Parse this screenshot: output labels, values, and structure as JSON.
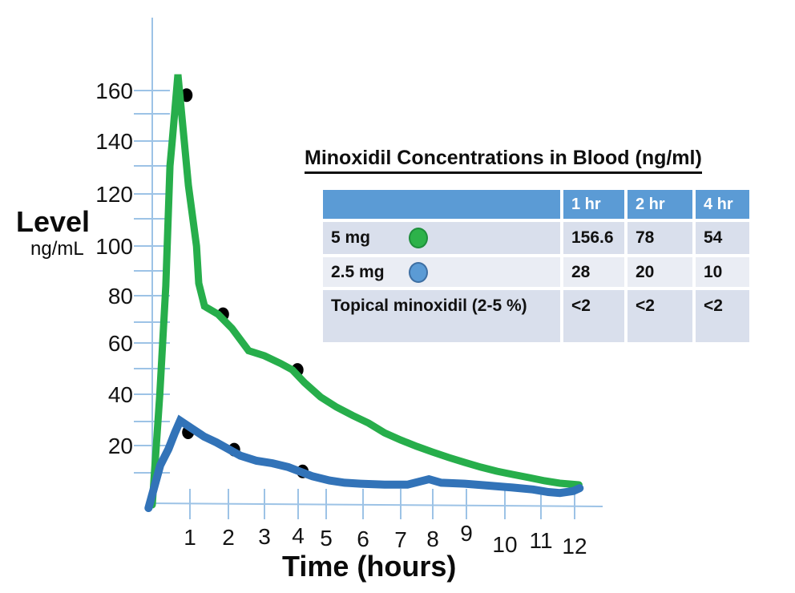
{
  "chart": {
    "ylabel": "Level",
    "ylabel_units": "ng/mL",
    "xlabel": "Time (hours)"
  },
  "table": {
    "title": "Minoxidil Concentrations in Blood (ng/ml)",
    "header_bg": "#5B9BD5",
    "row_bg_a": "#D9DFEC",
    "row_bg_b": "#EAEDF4",
    "columns": [
      "",
      "1 hr",
      "2 hr",
      "4 hr"
    ],
    "rows": [
      {
        "label": "5 mg",
        "dot_color": "#2DB24A",
        "values": [
          "156.6",
          "78",
          "54"
        ]
      },
      {
        "label": "2.5 mg",
        "dot_color": "#5B9BD5",
        "values": [
          "28",
          "20",
          "10"
        ]
      },
      {
        "label": "Topical minoxidil (2-5 %)",
        "values": [
          "<2",
          "<2",
          "<2"
        ]
      }
    ]
  },
  "chart_data": {
    "type": "line",
    "title": "Minoxidil Concentrations in Blood (ng/ml)",
    "xlabel": "Time (hours)",
    "ylabel": "Level (ng/mL)",
    "grid": false,
    "axis_color": "#9DC3E6",
    "x_axis": {
      "tick_labels": [
        1,
        2,
        3,
        4,
        5,
        6,
        7,
        8,
        9,
        10,
        11,
        12
      ],
      "range": [
        0,
        12.8
      ]
    },
    "y_axis": {
      "tick_labels": [
        20,
        40,
        60,
        80,
        100,
        120,
        140,
        160
      ],
      "minor_tick_step": 10,
      "range": [
        0,
        178
      ]
    },
    "series": [
      {
        "name": "5 mg",
        "color": "#27AE4B",
        "points": [
          [
            0,
            0
          ],
          [
            0.2,
            40
          ],
          [
            0.36,
            84
          ],
          [
            0.47,
            130
          ],
          [
            0.53,
            140
          ],
          [
            0.68,
            166
          ],
          [
            0.85,
            140
          ],
          [
            0.96,
            123
          ],
          [
            1.17,
            100
          ],
          [
            1.23,
            85
          ],
          [
            1.38,
            76
          ],
          [
            1.73,
            73
          ],
          [
            2.1,
            67
          ],
          [
            2.56,
            57
          ],
          [
            3.0,
            55
          ],
          [
            3.48,
            52
          ],
          [
            3.83,
            49.5
          ],
          [
            4.23,
            44.5
          ],
          [
            4.8,
            39
          ],
          [
            5.28,
            35.3
          ],
          [
            5.72,
            32.2
          ],
          [
            6.15,
            29.3
          ],
          [
            6.57,
            25.3
          ],
          [
            7.0,
            22.3
          ],
          [
            7.5,
            19.7
          ],
          [
            8.0,
            17.6
          ],
          [
            8.48,
            15.6
          ],
          [
            8.95,
            13.8
          ],
          [
            9.37,
            12.1
          ],
          [
            9.79,
            10.6
          ],
          [
            10.21,
            9.5
          ],
          [
            10.67,
            8.5
          ],
          [
            11.11,
            7.5
          ],
          [
            11.56,
            6.75
          ],
          [
            12.12,
            6.25
          ]
        ]
      },
      {
        "name": "2.5 mg",
        "color": "#3273B8",
        "points": [
          [
            -0.1,
            -1
          ],
          [
            0.21,
            12.7
          ],
          [
            0.43,
            18.7
          ],
          [
            0.6,
            25.3
          ],
          [
            0.74,
            30.3
          ],
          [
            1.06,
            27
          ],
          [
            1.37,
            23.7
          ],
          [
            1.69,
            21.3
          ],
          [
            2.0,
            18.7
          ],
          [
            2.33,
            16.3
          ],
          [
            2.78,
            14.4
          ],
          [
            3.24,
            13.5
          ],
          [
            3.71,
            12.1
          ],
          [
            4.03,
            10.6
          ],
          [
            4.51,
            8.9
          ],
          [
            5.09,
            7.6
          ],
          [
            5.5,
            6.9
          ],
          [
            5.93,
            6.6
          ],
          [
            6.57,
            6.3
          ],
          [
            7.21,
            6.3
          ],
          [
            7.88,
            8.0
          ],
          [
            8.25,
            6.9
          ],
          [
            8.95,
            6.6
          ],
          [
            9.58,
            6.0
          ],
          [
            10.21,
            5.4
          ],
          [
            10.78,
            4.8
          ],
          [
            11.22,
            4.0
          ],
          [
            11.56,
            3.7
          ],
          [
            11.96,
            4.3
          ],
          [
            12.14,
            5.2
          ]
        ]
      }
    ],
    "markers": {
      "color": "#000000",
      "points": [
        [
          0.91,
          158
        ],
        [
          1.86,
          73
        ],
        [
          3.98,
          49.5
        ],
        [
          0.95,
          25.5
        ],
        [
          2.16,
          18.5
        ],
        [
          4.16,
          10.5
        ]
      ]
    },
    "table_values": {
      "5 mg": {
        "1 hr": 156.6,
        "2 hr": 78,
        "4 hr": 54
      },
      "2.5 mg": {
        "1 hr": 28,
        "2 hr": 20,
        "4 hr": 10
      },
      "Topical minoxidil (2-5 %)": {
        "1 hr": "<2",
        "2 hr": "<2",
        "4 hr": "<2"
      }
    }
  }
}
